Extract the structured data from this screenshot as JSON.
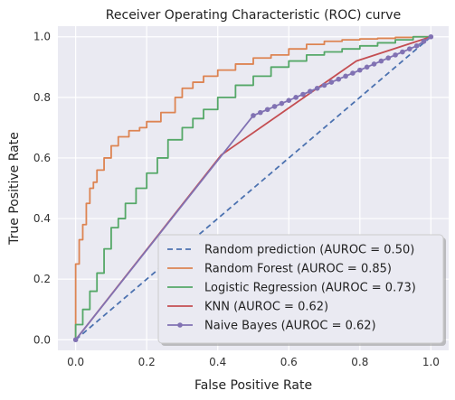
{
  "chart_data": {
    "type": "line",
    "title": "Receiver Operating Characteristic (ROC) curve",
    "xlabel": "False Positive Rate",
    "ylabel": "True Positive Rate",
    "xlim": [
      -0.05,
      1.05
    ],
    "ylim": [
      -0.035,
      1.035
    ],
    "xticks": [
      0.0,
      0.2,
      0.4,
      0.6,
      0.8,
      1.0
    ],
    "xtick_labels": [
      "0.0",
      "0.2",
      "0.4",
      "0.6",
      "0.8",
      "1.0"
    ],
    "yticks": [
      0.0,
      0.2,
      0.4,
      0.6,
      0.8,
      1.0
    ],
    "ytick_labels": [
      "0.0",
      "0.2",
      "0.4",
      "0.6",
      "0.8",
      "1.0"
    ],
    "grid": true,
    "legend_position": "lower-right",
    "series": [
      {
        "name": "Random prediction (AUROC = 0.50)",
        "color": "#4c72b0",
        "style": "dashed",
        "x": [
          0.0,
          1.0
        ],
        "y": [
          0.0,
          1.0
        ]
      },
      {
        "name": "Random Forest (AUROC = 0.85)",
        "color": "#dd8452",
        "style": "step",
        "x": [
          0.0,
          0.0,
          0.01,
          0.02,
          0.03,
          0.04,
          0.05,
          0.06,
          0.08,
          0.1,
          0.12,
          0.15,
          0.18,
          0.2,
          0.24,
          0.28,
          0.3,
          0.33,
          0.36,
          0.4,
          0.45,
          0.5,
          0.55,
          0.6,
          0.65,
          0.7,
          0.75,
          0.8,
          0.85,
          0.9,
          0.95,
          1.0
        ],
        "y": [
          0.0,
          0.1,
          0.25,
          0.33,
          0.38,
          0.45,
          0.5,
          0.52,
          0.56,
          0.6,
          0.64,
          0.67,
          0.69,
          0.7,
          0.72,
          0.75,
          0.8,
          0.83,
          0.85,
          0.87,
          0.89,
          0.91,
          0.93,
          0.94,
          0.96,
          0.975,
          0.985,
          0.99,
          0.993,
          0.995,
          0.998,
          1.0
        ]
      },
      {
        "name": "Logistic Regression (AUROC = 0.73)",
        "color": "#55a868",
        "style": "step",
        "x": [
          0.0,
          0.02,
          0.04,
          0.06,
          0.08,
          0.1,
          0.12,
          0.14,
          0.17,
          0.2,
          0.23,
          0.26,
          0.3,
          0.33,
          0.36,
          0.4,
          0.45,
          0.5,
          0.55,
          0.6,
          0.65,
          0.7,
          0.75,
          0.8,
          0.85,
          0.9,
          0.95,
          1.0
        ],
        "y": [
          0.0,
          0.05,
          0.1,
          0.16,
          0.22,
          0.3,
          0.37,
          0.4,
          0.45,
          0.5,
          0.55,
          0.6,
          0.66,
          0.7,
          0.73,
          0.76,
          0.8,
          0.84,
          0.87,
          0.9,
          0.92,
          0.94,
          0.95,
          0.96,
          0.97,
          0.98,
          0.99,
          1.0
        ]
      },
      {
        "name": "KNN (AUROC = 0.62)",
        "color": "#c44e52",
        "style": "solid",
        "x": [
          0.0,
          0.41,
          0.79,
          1.0
        ],
        "y": [
          0.0,
          0.61,
          0.92,
          1.0
        ]
      },
      {
        "name": "Naive Bayes (AUROC = 0.62)",
        "color": "#8172b3",
        "style": "solid-markers",
        "x": [
          0.0,
          0.5,
          0.52,
          0.54,
          0.56,
          0.58,
          0.6,
          0.62,
          0.64,
          0.66,
          0.68,
          0.7,
          0.72,
          0.74,
          0.76,
          0.78,
          0.8,
          0.82,
          0.84,
          0.86,
          0.88,
          0.9,
          0.92,
          0.94,
          0.96,
          0.98,
          1.0
        ],
        "y": [
          0.0,
          0.74,
          0.75,
          0.76,
          0.77,
          0.78,
          0.79,
          0.8,
          0.81,
          0.82,
          0.83,
          0.84,
          0.85,
          0.86,
          0.87,
          0.88,
          0.89,
          0.9,
          0.91,
          0.92,
          0.93,
          0.94,
          0.95,
          0.96,
          0.97,
          0.985,
          1.0
        ]
      }
    ]
  }
}
